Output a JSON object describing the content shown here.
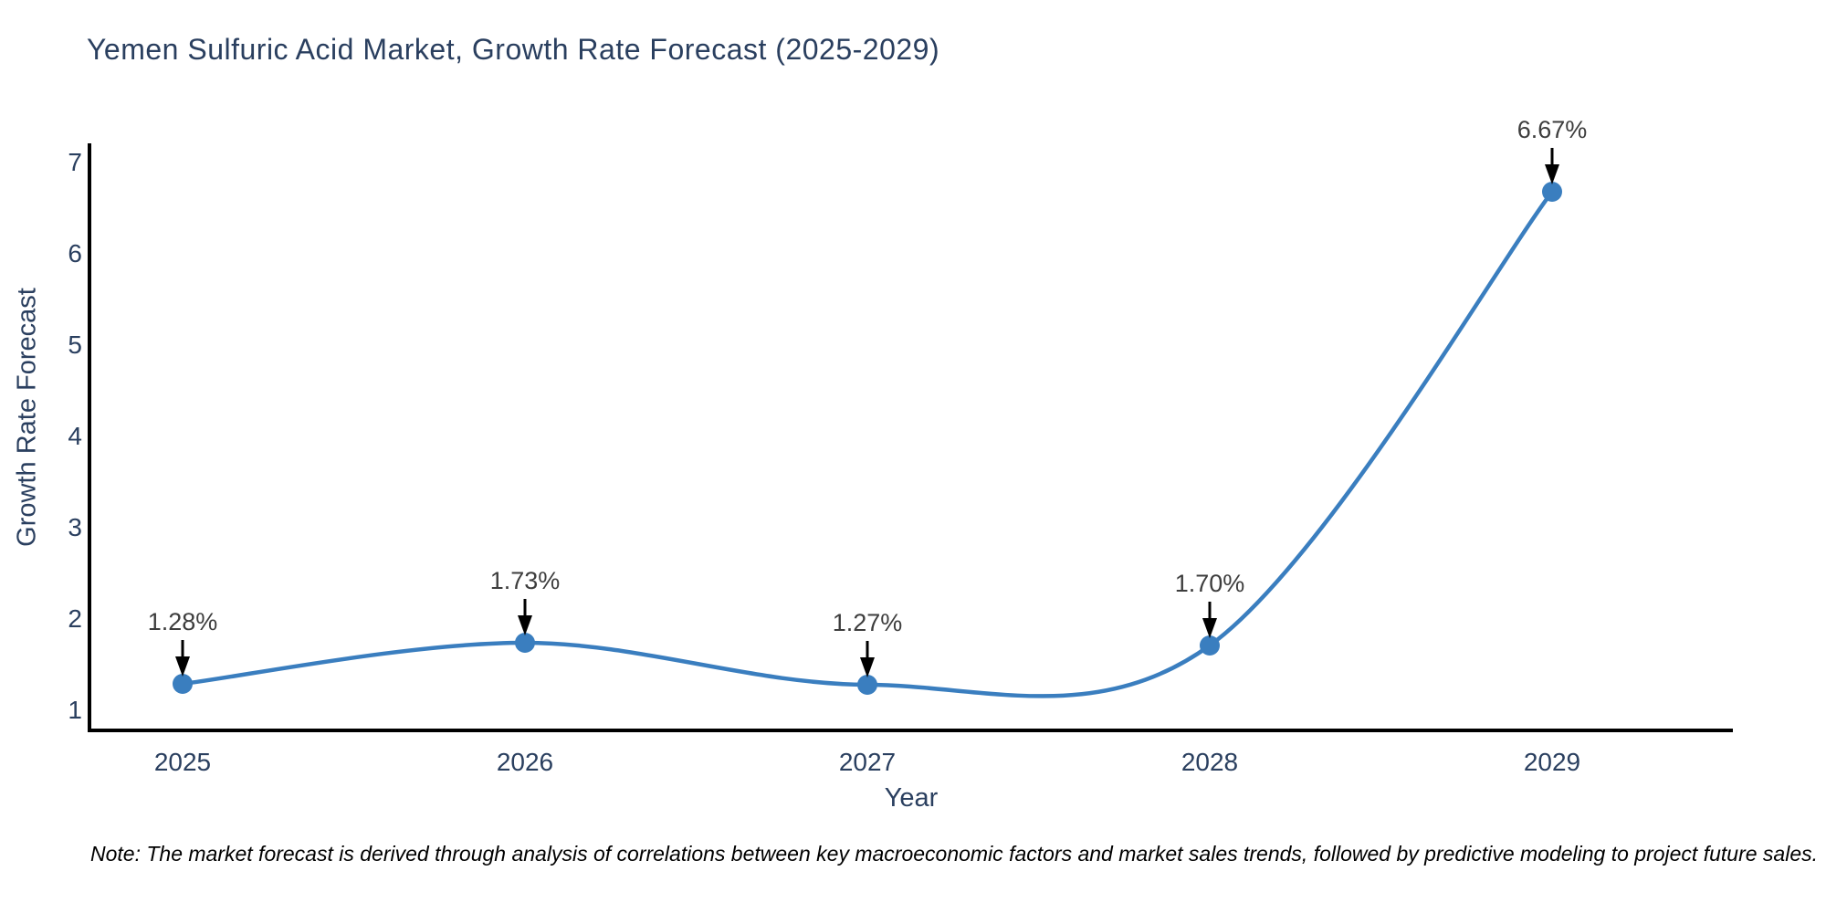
{
  "title": "Yemen Sulfuric Acid Market, Growth Rate Forecast (2025-2029)",
  "note": "Note: The market forecast is derived through analysis of correlations between key macroeconomic factors and market sales trends, followed by predictive modeling to project future sales.",
  "chart_data": {
    "type": "line",
    "title": "Yemen Sulfuric Acid Market, Growth Rate Forecast (2025-2029)",
    "xlabel": "Year",
    "ylabel": "Growth Rate Forecast",
    "categories": [
      "2025",
      "2026",
      "2027",
      "2028",
      "2029"
    ],
    "values": [
      1.28,
      1.73,
      1.27,
      1.7,
      6.67
    ],
    "point_labels": [
      "1.28%",
      "1.73%",
      "1.27%",
      "1.70%",
      "6.67%"
    ],
    "yticks": [
      1,
      2,
      3,
      4,
      5,
      6,
      7
    ],
    "ylim": [
      0.77,
      7.2
    ],
    "grid": false,
    "legend": false,
    "line_shape": "spline",
    "colors": {
      "line": "#3a7ebf",
      "marker": "#3a7ebf",
      "axis": "#000000",
      "tick_text": "#2a3f5f",
      "annotation_text": "#3d3d3d",
      "arrow": "#000000",
      "title_text": "#2a3f5f"
    }
  }
}
